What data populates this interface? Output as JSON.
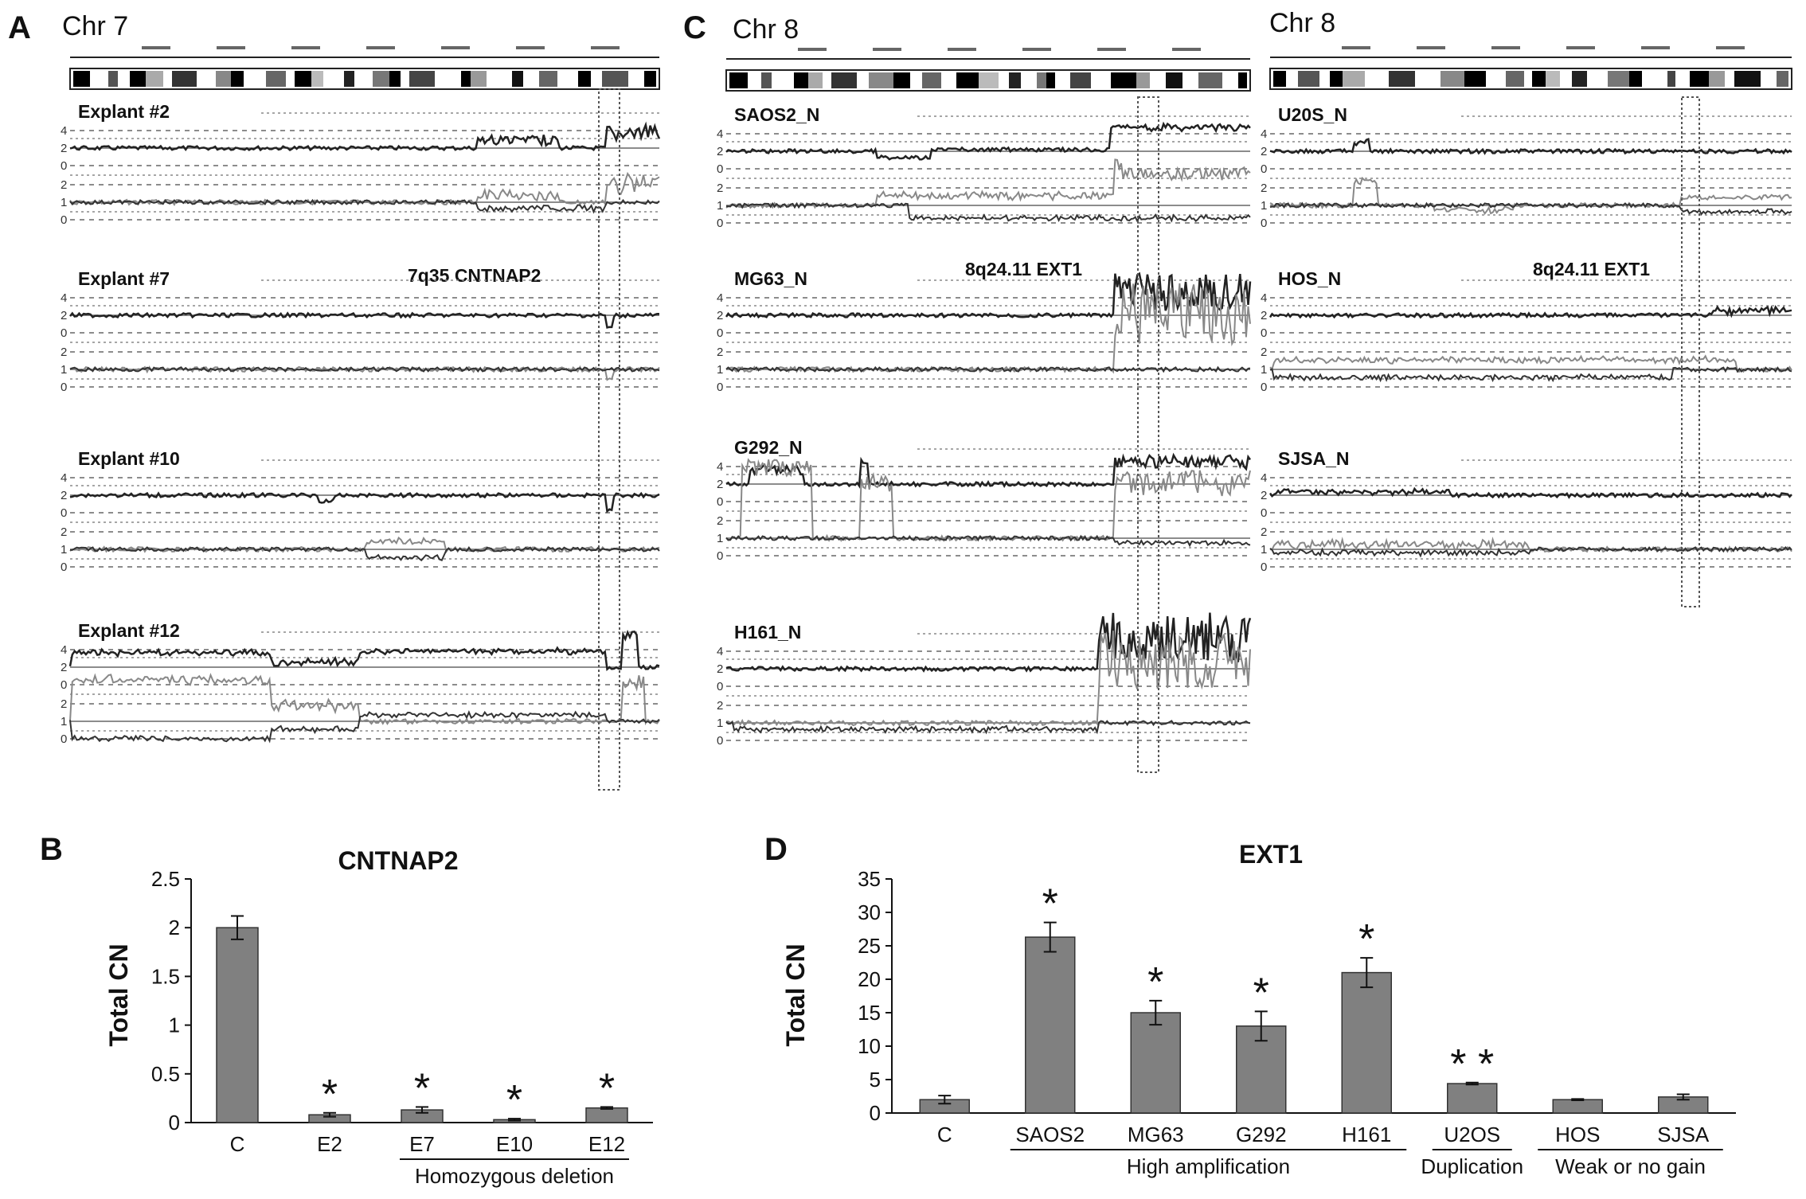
{
  "panel_letters": {
    "a": "A",
    "b": "B",
    "c": "C",
    "d": "D"
  },
  "panel_a": {
    "chromosome": "Chr 7",
    "region_label": "7q35 CNTNAP2",
    "tracks": [
      "Explant #2",
      "Explant #7",
      "Explant #10",
      "Explant #12"
    ],
    "scale_ticks_upper": [
      "4",
      "2",
      "0"
    ],
    "scale_ticks_lower": [
      "2",
      "1",
      "0"
    ]
  },
  "panel_c": {
    "chromosome_left": "Chr 8",
    "chromosome_right": "Chr 8",
    "region_label_left": "8q24.11 EXT1",
    "region_label_right": "8q24.11 EXT1",
    "tracks_left": [
      "SAOS2_N",
      "MG63_N",
      "G292_N",
      "H161_N"
    ],
    "tracks_right": [
      "U20S_N",
      "HOS_N",
      "SJSA_N"
    ],
    "scale_ticks_upper": [
      "4",
      "2",
      "0"
    ],
    "scale_ticks_lower": [
      "2",
      "1",
      "0"
    ]
  },
  "chart_data": [
    {
      "type": "bar",
      "title": "CNTNAP2",
      "ylabel": "Total CN",
      "xlabel": "",
      "ylim": [
        0,
        2.5
      ],
      "yticks": [
        "0",
        "0.5",
        "1",
        "1.5",
        "2",
        "2.5"
      ],
      "categories": [
        "C",
        "E2",
        "E7",
        "E10",
        "E12"
      ],
      "values": [
        2.0,
        0.08,
        0.13,
        0.03,
        0.15
      ],
      "errors": [
        0.12,
        0.02,
        0.03,
        0.01,
        0.01
      ],
      "significance": [
        "",
        "*",
        "*",
        "*",
        "*"
      ],
      "groups": [
        {
          "label": "Homozygous deletion",
          "from": 2,
          "to": 4
        }
      ],
      "bar_color": "#808080",
      "grid": false
    },
    {
      "type": "bar",
      "title": "EXT1",
      "ylabel": "Total CN",
      "xlabel": "",
      "ylim": [
        0,
        35
      ],
      "yticks": [
        "0",
        "5",
        "10",
        "15",
        "20",
        "25",
        "30",
        "35"
      ],
      "categories": [
        "C",
        "SAOS2",
        "MG63",
        "G292",
        "H161",
        "U2OS",
        "HOS",
        "SJSA"
      ],
      "values": [
        2.0,
        26.3,
        15.0,
        13.0,
        21.0,
        4.4,
        2.0,
        2.4
      ],
      "errors": [
        0.6,
        2.2,
        1.8,
        2.2,
        2.2,
        0.15,
        0.1,
        0.4
      ],
      "significance": [
        "",
        "*",
        "*",
        "*",
        "*",
        "**",
        "",
        ""
      ],
      "groups": [
        {
          "label": "High amplification",
          "from": 1,
          "to": 4
        },
        {
          "label": "Duplication",
          "from": 5,
          "to": 5
        },
        {
          "label": "Weak or no gain",
          "from": 6,
          "to": 7
        }
      ],
      "bar_color": "#808080",
      "grid": false
    }
  ]
}
